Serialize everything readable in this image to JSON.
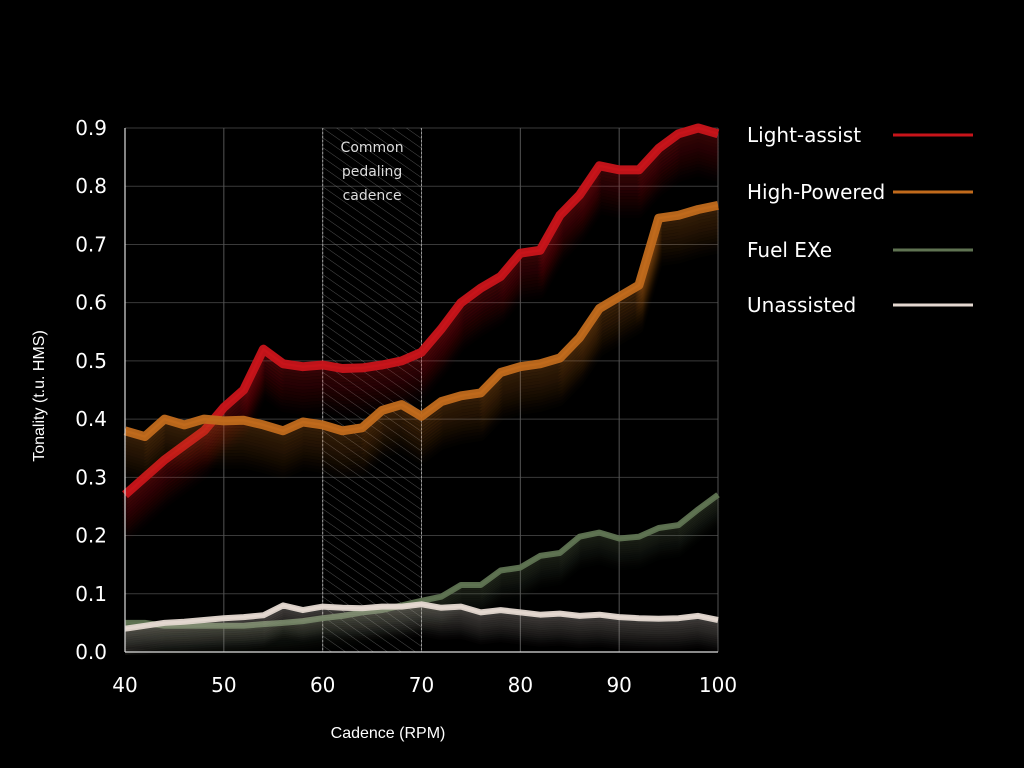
{
  "chart_data": {
    "type": "area",
    "title": "",
    "xlabel": "Cadence (RPM)",
    "ylabel": "Tonality (t.u. HMS)",
    "xlim": [
      40,
      100
    ],
    "ylim": [
      0,
      0.9
    ],
    "xticks": [
      "40",
      "50",
      "60",
      "70",
      "80",
      "90",
      "100"
    ],
    "yticks": [
      "0.0",
      "0.1",
      "0.2",
      "0.3",
      "0.4",
      "0.5",
      "0.6",
      "0.7",
      "0.8",
      "0.9"
    ],
    "grid": true,
    "legend_position": "right",
    "annotation": {
      "lines": [
        "Common",
        "pedaling",
        "cadence"
      ],
      "x_range": [
        60,
        70
      ]
    },
    "x": [
      40,
      42,
      44,
      46,
      48,
      50,
      52,
      54,
      56,
      58,
      60,
      62,
      64,
      66,
      68,
      70,
      72,
      74,
      76,
      78,
      80,
      82,
      84,
      86,
      88,
      90,
      92,
      94,
      96,
      98,
      100
    ],
    "series": [
      {
        "name": "Light-assist",
        "color": "#c8141a",
        "values": [
          0.27,
          0.3,
          0.33,
          0.355,
          0.38,
          0.42,
          0.45,
          0.52,
          0.495,
          0.49,
          0.493,
          0.487,
          0.488,
          0.493,
          0.5,
          0.515,
          0.555,
          0.6,
          0.625,
          0.645,
          0.685,
          0.69,
          0.75,
          0.785,
          0.835,
          0.828,
          0.828,
          0.865,
          0.89,
          0.9,
          0.89
        ]
      },
      {
        "name": "High-Powered",
        "color": "#c06a1c",
        "values": [
          0.38,
          0.37,
          0.4,
          0.39,
          0.4,
          0.397,
          0.398,
          0.39,
          0.38,
          0.395,
          0.39,
          0.38,
          0.385,
          0.415,
          0.425,
          0.405,
          0.43,
          0.44,
          0.445,
          0.48,
          0.49,
          0.495,
          0.505,
          0.54,
          0.59,
          0.61,
          0.63,
          0.745,
          0.75,
          0.76,
          0.767
        ]
      },
      {
        "name": "Fuel EXe",
        "color": "#5f7352",
        "values": [
          0.05,
          0.05,
          0.045,
          0.045,
          0.045,
          0.045,
          0.045,
          0.048,
          0.05,
          0.053,
          0.058,
          0.062,
          0.068,
          0.072,
          0.08,
          0.088,
          0.095,
          0.115,
          0.115,
          0.14,
          0.145,
          0.165,
          0.17,
          0.198,
          0.205,
          0.195,
          0.198,
          0.213,
          0.218,
          0.245,
          0.27
        ]
      },
      {
        "name": "Unassisted",
        "color": "#e4d8d0",
        "values": [
          0.04,
          0.045,
          0.05,
          0.052,
          0.055,
          0.058,
          0.06,
          0.063,
          0.08,
          0.072,
          0.078,
          0.076,
          0.075,
          0.078,
          0.078,
          0.082,
          0.076,
          0.078,
          0.068,
          0.072,
          0.068,
          0.064,
          0.066,
          0.062,
          0.064,
          0.06,
          0.058,
          0.057,
          0.058,
          0.062,
          0.055
        ]
      }
    ]
  }
}
